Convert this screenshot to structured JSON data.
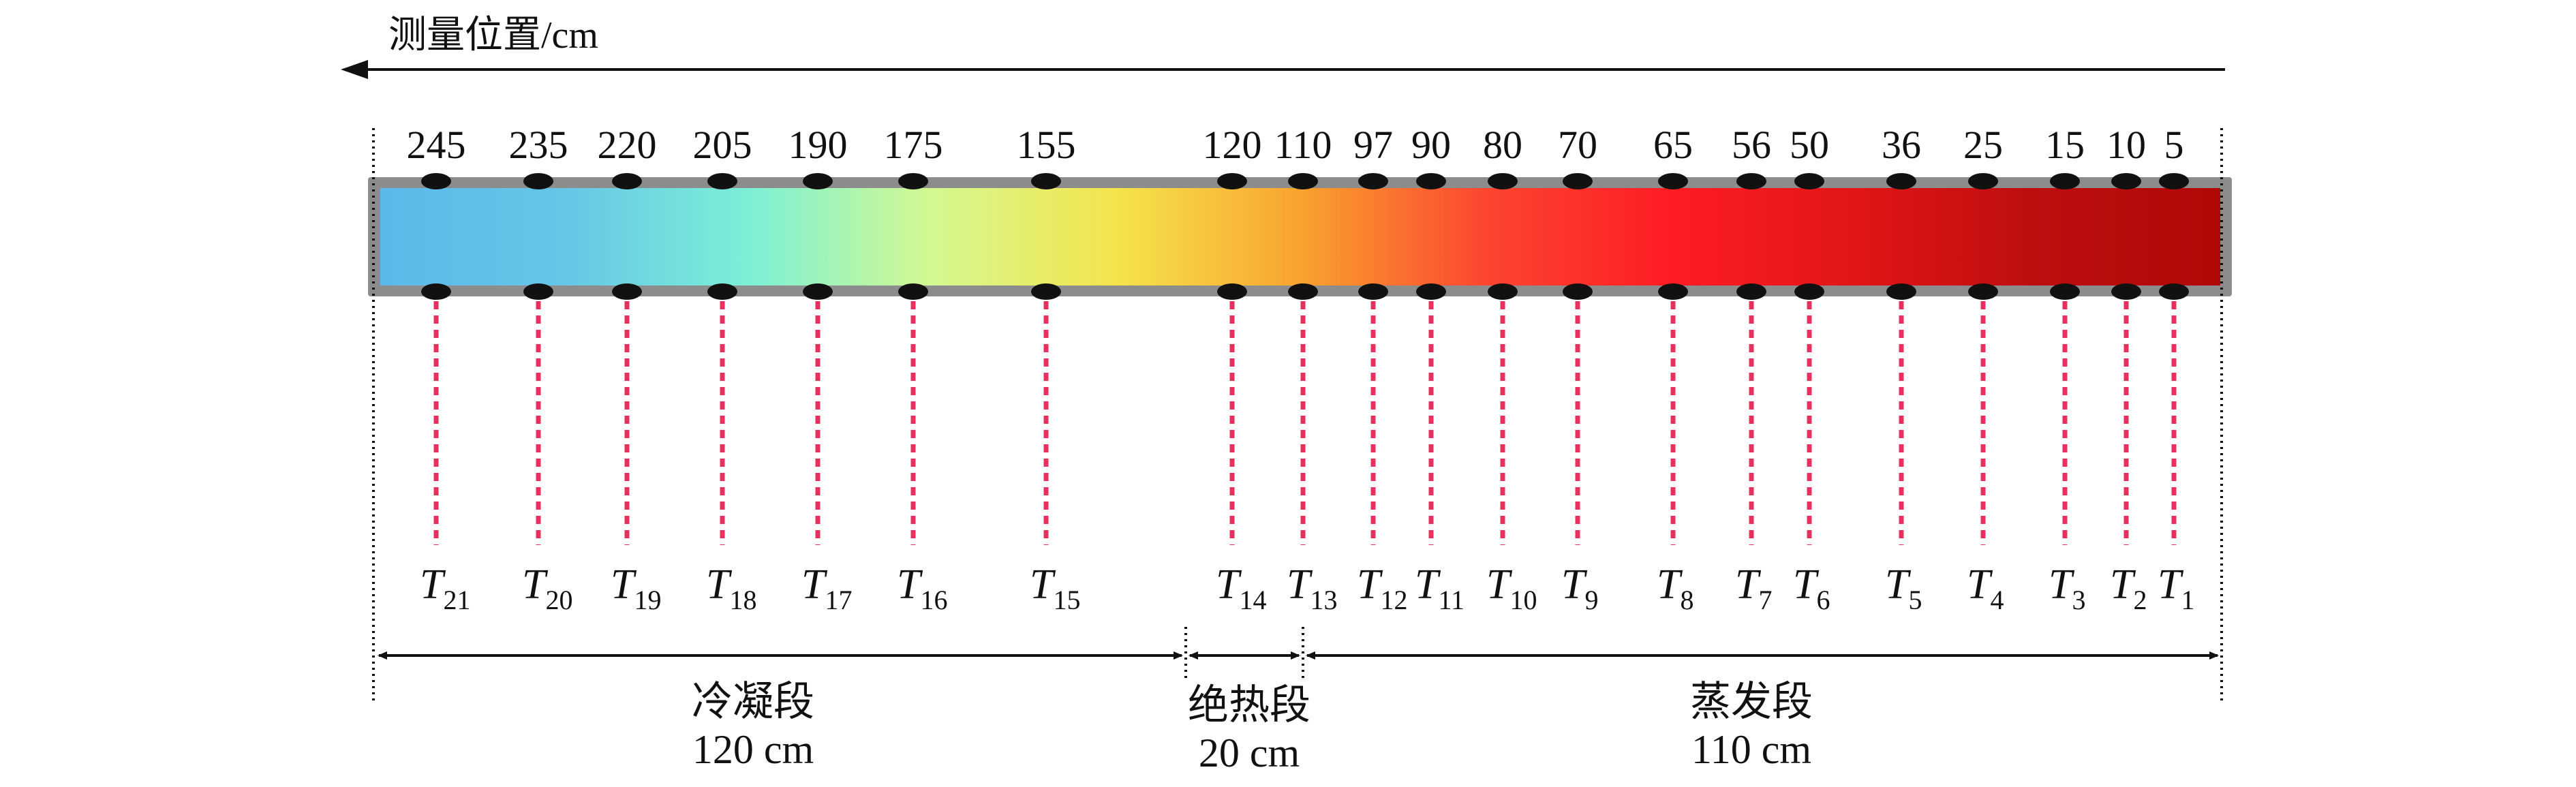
{
  "axis": {
    "label": "测量位置/cm",
    "direction": "right-to-left"
  },
  "colors": {
    "bar_frame": "#8c8c8c",
    "probe_line": "#e8305e",
    "marker": "#111111",
    "gradient": [
      "#5cb8ea",
      "#66c6e6",
      "#7bf0d6",
      "#d4f890",
      "#f4e44c",
      "#f9a32e",
      "#fb4630",
      "#ff1d24",
      "#e21617",
      "#bd0e10",
      "#b00808"
    ]
  },
  "sensors": [
    {
      "id": "21",
      "position": "245",
      "prefix": "T",
      "sub": "21"
    },
    {
      "id": "20",
      "position": "235",
      "prefix": "T",
      "sub": "20"
    },
    {
      "id": "19",
      "position": "220",
      "prefix": "T",
      "sub": "19"
    },
    {
      "id": "18",
      "position": "205",
      "prefix": "T",
      "sub": "18"
    },
    {
      "id": "17",
      "position": "190",
      "prefix": "T",
      "sub": "17"
    },
    {
      "id": "16",
      "position": "175",
      "prefix": "T",
      "sub": "16"
    },
    {
      "id": "15",
      "position": "155",
      "prefix": "T",
      "sub": "15"
    },
    {
      "id": "14",
      "position": "120",
      "prefix": "T",
      "sub": "14"
    },
    {
      "id": "13",
      "position": "110",
      "prefix": "T",
      "sub": "13"
    },
    {
      "id": "12",
      "position": "97",
      "prefix": "T",
      "sub": "12"
    },
    {
      "id": "11",
      "position": "90",
      "prefix": "T",
      "sub": "11"
    },
    {
      "id": "10",
      "position": "80",
      "prefix": "T",
      "sub": "10"
    },
    {
      "id": "9",
      "position": "70",
      "prefix": "T",
      "sub": "9"
    },
    {
      "id": "8",
      "position": "65",
      "prefix": "T",
      "sub": "8"
    },
    {
      "id": "7",
      "position": "56",
      "prefix": "T",
      "sub": "7"
    },
    {
      "id": "6",
      "position": "50",
      "prefix": "T",
      "sub": "6"
    },
    {
      "id": "5",
      "position": "36",
      "prefix": "T",
      "sub": "5"
    },
    {
      "id": "4",
      "position": "25",
      "prefix": "T",
      "sub": "4"
    },
    {
      "id": "3",
      "position": "15",
      "prefix": "T",
      "sub": "3"
    },
    {
      "id": "2",
      "position": "10",
      "prefix": "T",
      "sub": "2"
    },
    {
      "id": "1",
      "position": "5",
      "prefix": "T",
      "sub": "1"
    }
  ],
  "sections": [
    {
      "id": "condenser",
      "name": "冷凝段",
      "length": "120 cm"
    },
    {
      "id": "adiabatic",
      "name": "绝热段",
      "length": "20 cm"
    },
    {
      "id": "evaporator",
      "name": "蒸发段",
      "length": "110 cm"
    }
  ]
}
